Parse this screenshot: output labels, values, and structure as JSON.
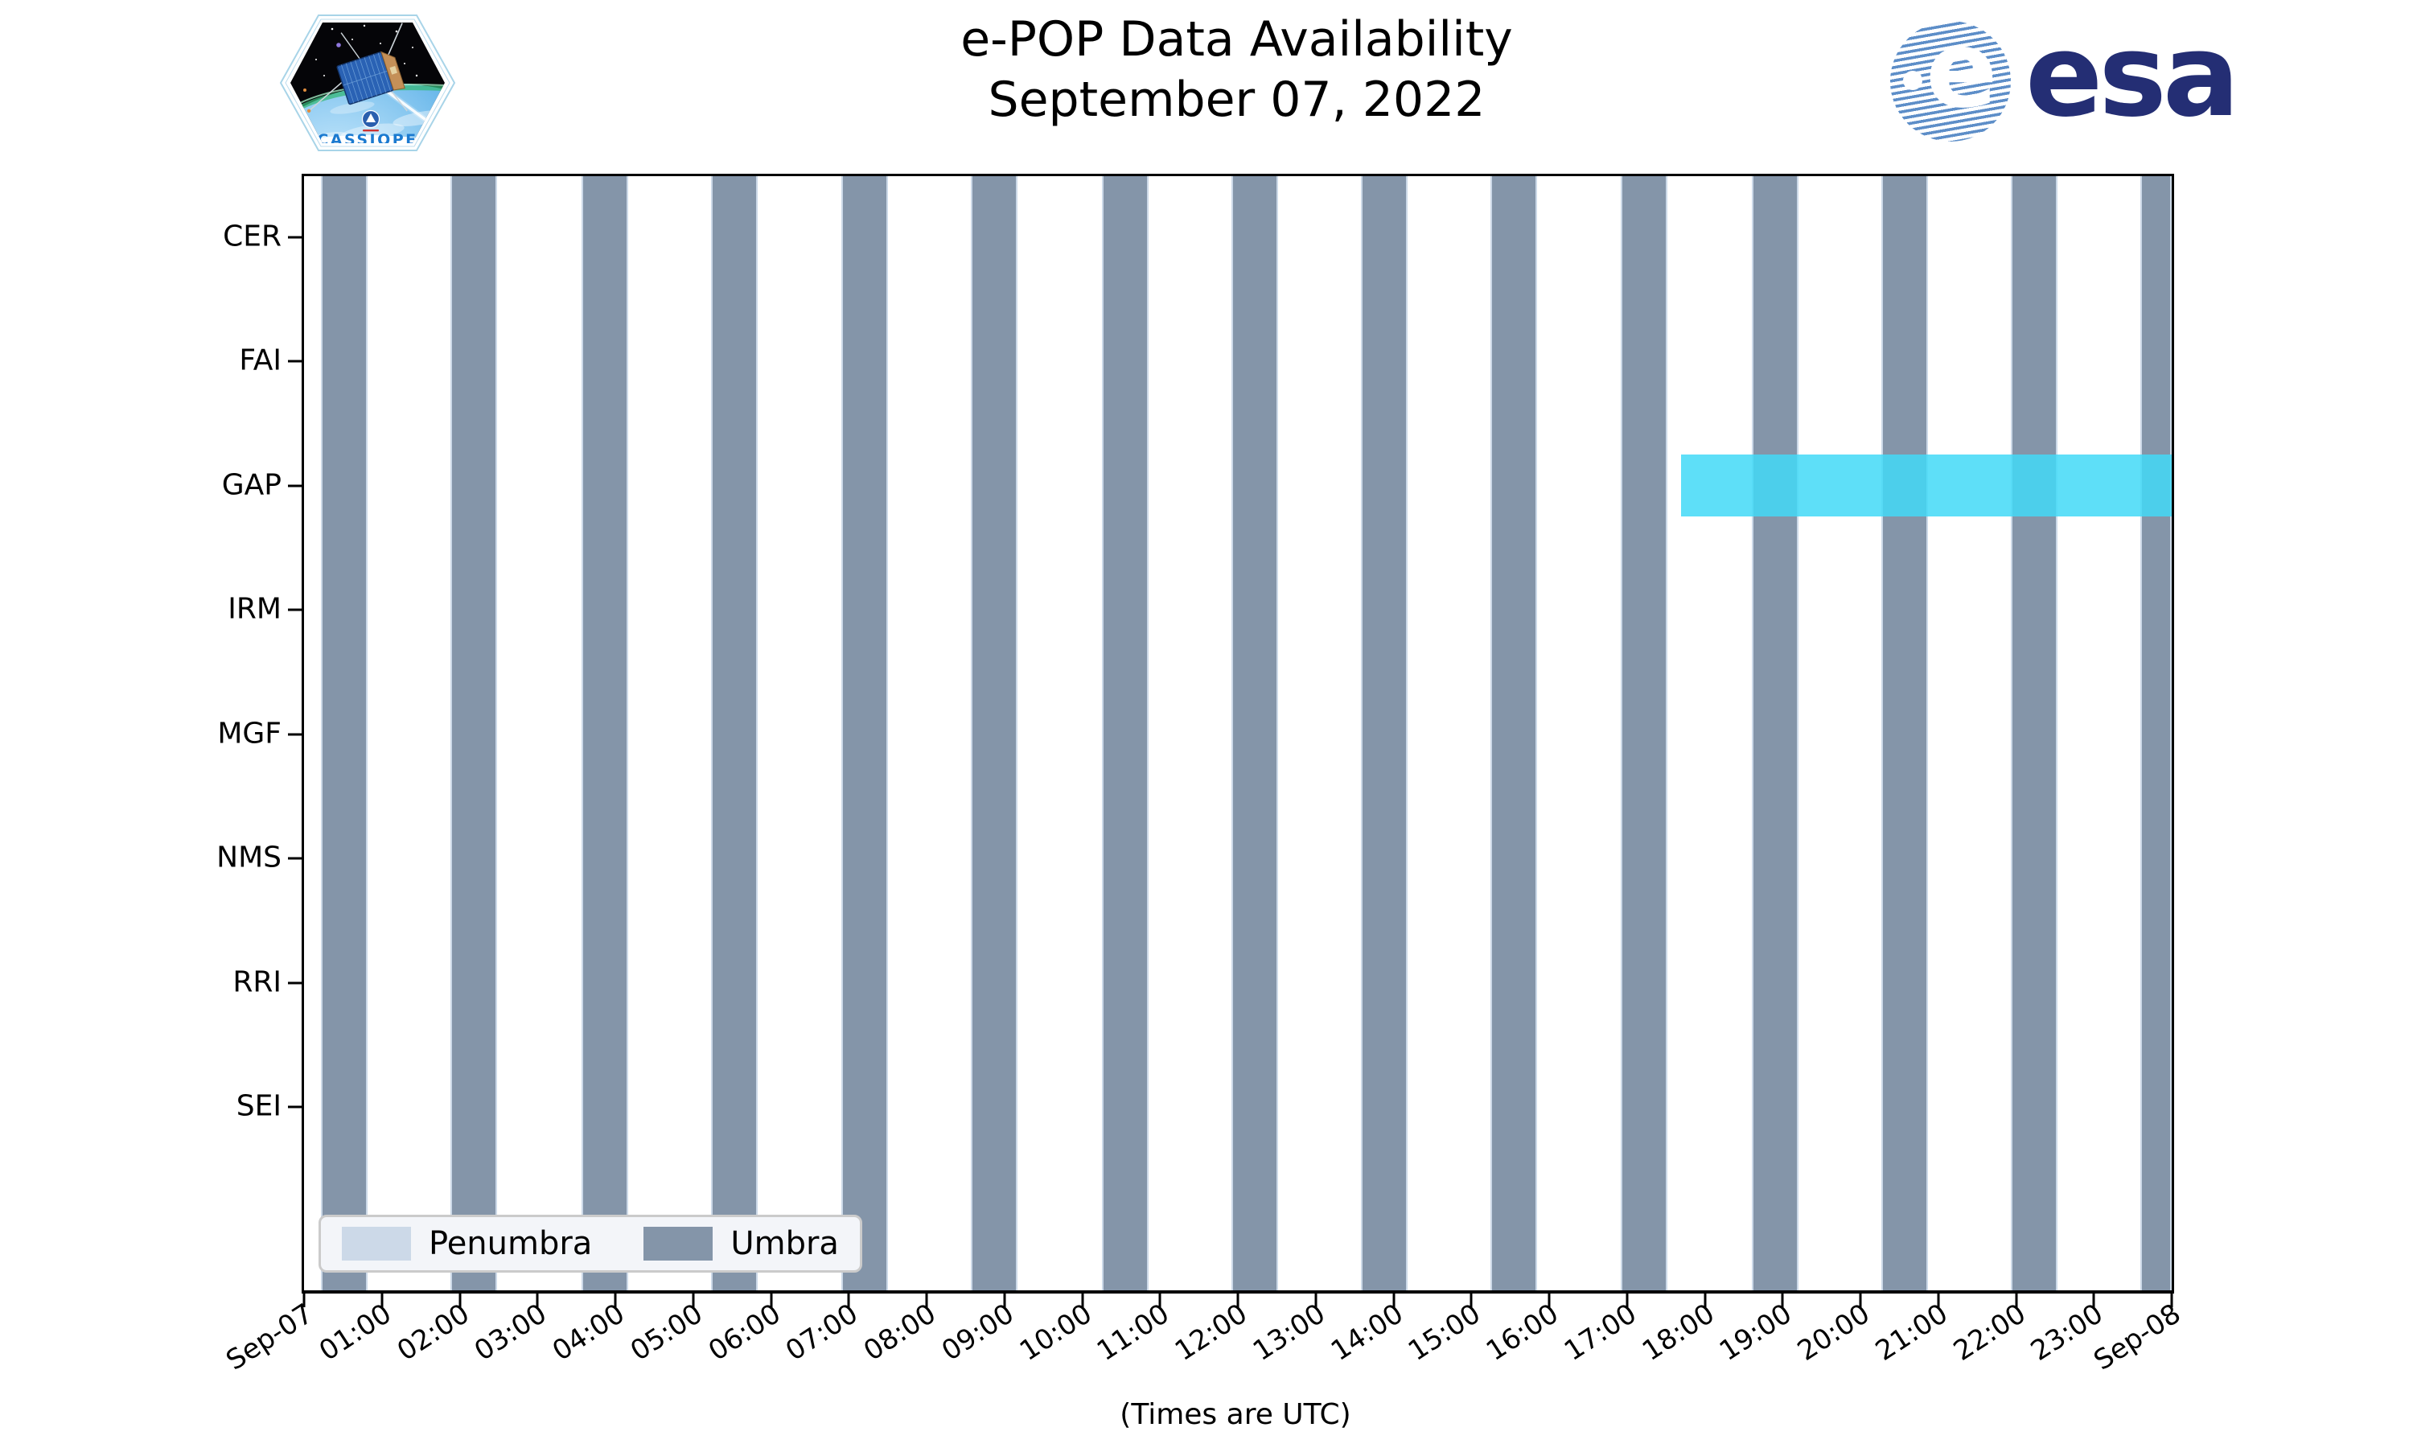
{
  "header": {
    "title_line1": "e-POP Data Availability",
    "title_line2": "September 07, 2022"
  },
  "logos": {
    "cassiope_caption": "CASSIOPE",
    "esa_wordmark": "esa",
    "esa_globe_letter": "e"
  },
  "chart_data": {
    "type": "timeline",
    "title": "e-POP Data Availability",
    "subtitle": "September 07, 2022",
    "xlabel": "(Times are UTC)",
    "x_axis": {
      "start": "Sep-07 00:00",
      "end": "Sep-08 00:00",
      "tick_labels": [
        "Sep-07",
        "01:00",
        "02:00",
        "03:00",
        "04:00",
        "05:00",
        "06:00",
        "07:00",
        "08:00",
        "09:00",
        "10:00",
        "11:00",
        "12:00",
        "13:00",
        "14:00",
        "15:00",
        "16:00",
        "17:00",
        "18:00",
        "19:00",
        "20:00",
        "21:00",
        "22:00",
        "23:00",
        "Sep-08"
      ]
    },
    "instruments": [
      "CER",
      "FAI",
      "GAP",
      "IRM",
      "MGF",
      "NMS",
      "RRI",
      "SEI"
    ],
    "umbra_intervals_utc": [
      [
        "00:13",
        "00:49"
      ],
      [
        "01:53",
        "02:29"
      ],
      [
        "03:34",
        "04:10"
      ],
      [
        "05:14",
        "05:50"
      ],
      [
        "06:54",
        "07:30"
      ],
      [
        "08:34",
        "09:10"
      ],
      [
        "10:15",
        "10:51"
      ],
      [
        "11:55",
        "12:31"
      ],
      [
        "13:35",
        "14:11"
      ],
      [
        "15:15",
        "15:51"
      ],
      [
        "16:55",
        "17:31"
      ],
      [
        "18:36",
        "19:12"
      ],
      [
        "20:16",
        "20:52"
      ],
      [
        "21:56",
        "22:32"
      ],
      [
        "23:36",
        "24:00"
      ]
    ],
    "availability": [
      {
        "instrument": "GAP",
        "start_utc": "17:42",
        "end_utc": "24:00",
        "color": "#42d9f7"
      }
    ],
    "legend": {
      "position": "lower left",
      "items": [
        {
          "label": "Penumbra",
          "color": "#ccd9e8"
        },
        {
          "label": "Umbra",
          "color": "#8495a9"
        }
      ]
    },
    "colors": {
      "umbra": "#8495a9",
      "penumbra": "#ccd9e8",
      "gap_bar": "#42d9f7",
      "axis": "#000000"
    }
  }
}
